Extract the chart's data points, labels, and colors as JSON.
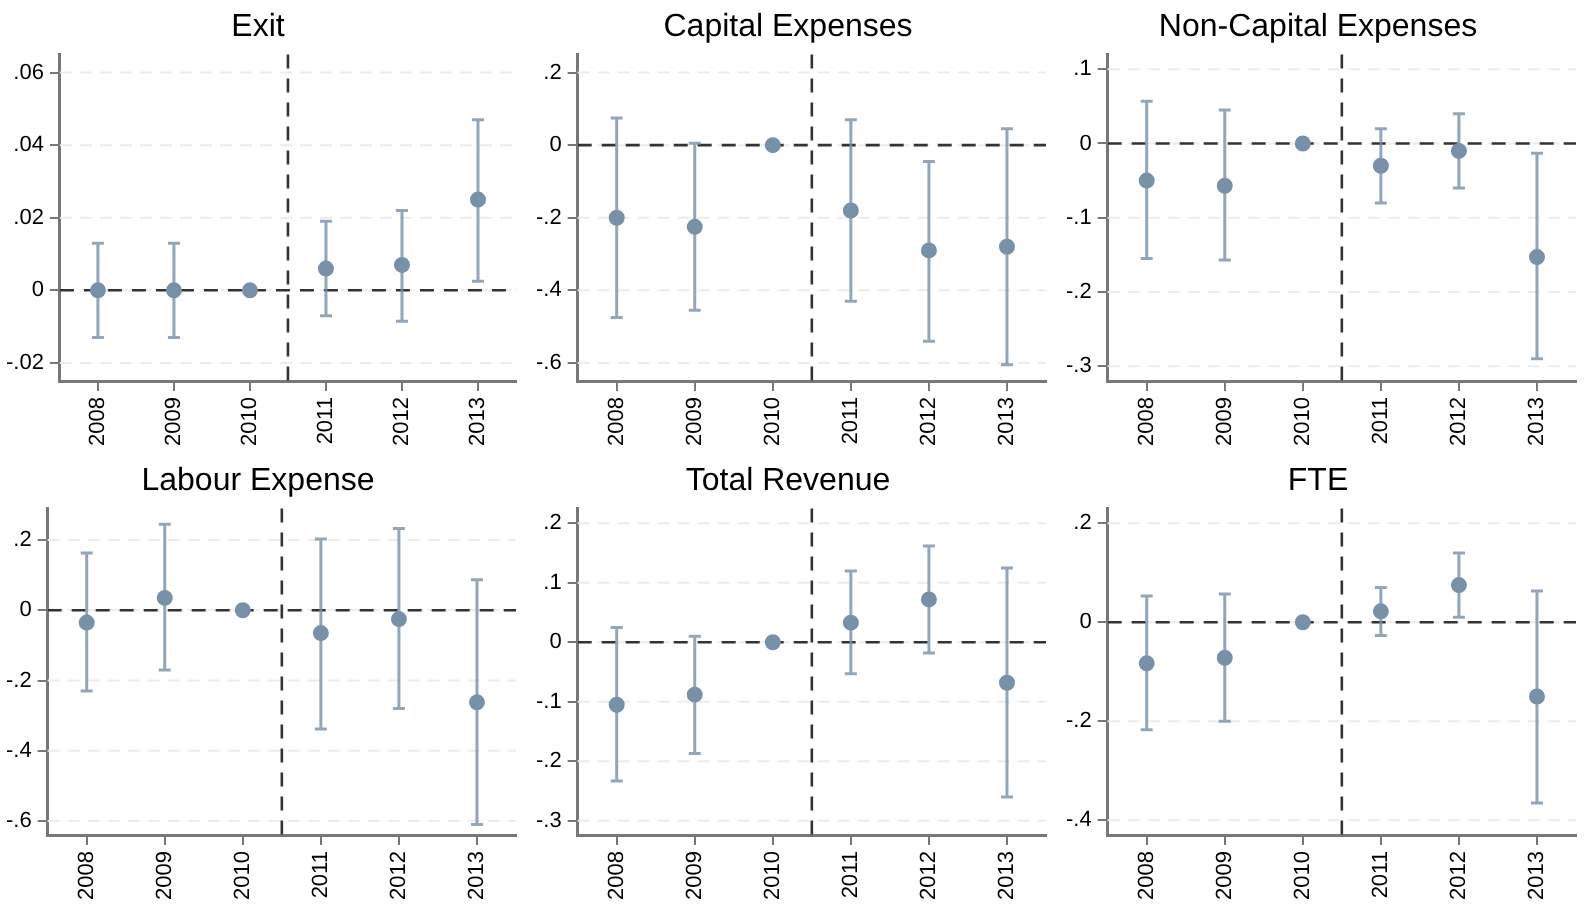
{
  "chart_data": [
    {
      "type": "scatter",
      "title": "Exit",
      "marker": "circle",
      "grid": "y",
      "x": [
        2008,
        2009,
        2010,
        2011,
        2012,
        2013
      ],
      "xlim": [
        2007.5,
        2013.5
      ],
      "xticks": [
        2008,
        2009,
        2010,
        2011,
        2012,
        2013
      ],
      "ylim": [
        -0.025,
        0.065
      ],
      "yticks": [
        {
          "value": -0.02,
          "label": "-.02"
        },
        {
          "value": 0,
          "label": "0"
        },
        {
          "value": 0.02,
          "label": ".02"
        },
        {
          "value": 0.04,
          "label": ".04"
        },
        {
          "value": 0.06,
          "label": ".06"
        }
      ],
      "ref_lines": [
        {
          "axis": "y",
          "value": 0,
          "color": "#333333",
          "line_style": "dashed"
        },
        {
          "axis": "x",
          "value": 2010.5,
          "color": "#333333",
          "line_style": "dashed"
        }
      ],
      "series": [
        {
          "color": "#7890a8",
          "values": [
            0,
            0,
            0,
            0.006,
            0.007,
            0.025
          ],
          "errors": [
            [
              -0.013,
              0.013
            ],
            [
              -0.013,
              0.013
            ],
            null,
            [
              -0.007,
              0.019
            ],
            [
              -0.0085,
              0.022
            ],
            [
              0.0025,
              0.047
            ]
          ]
        }
      ]
    },
    {
      "type": "scatter",
      "title": "Capital Expenses",
      "marker": "circle",
      "grid": "y",
      "x": [
        2008,
        2009,
        2010,
        2011,
        2012,
        2013
      ],
      "xlim": [
        2007.5,
        2013.5
      ],
      "xticks": [
        2008,
        2009,
        2010,
        2011,
        2012,
        2013
      ],
      "ylim": [
        -0.65,
        0.25
      ],
      "yticks": [
        {
          "value": -0.6,
          "label": "-.6"
        },
        {
          "value": -0.4,
          "label": "-.4"
        },
        {
          "value": -0.2,
          "label": "-.2"
        },
        {
          "value": 0,
          "label": "0"
        },
        {
          "value": 0.2,
          "label": ".2"
        }
      ],
      "ref_lines": [
        {
          "axis": "y",
          "value": 0,
          "color": "#333333",
          "line_style": "dashed"
        },
        {
          "axis": "x",
          "value": 2010.5,
          "color": "#333333",
          "line_style": "dashed"
        }
      ],
      "series": [
        {
          "color": "#7890a8",
          "values": [
            -0.2,
            -0.225,
            0,
            -0.18,
            -0.29,
            -0.28
          ],
          "errors": [
            [
              -0.475,
              0.075
            ],
            [
              -0.455,
              0.005
            ],
            null,
            [
              -0.43,
              0.07
            ],
            [
              -0.54,
              -0.045
            ],
            [
              -0.605,
              0.045
            ]
          ]
        }
      ]
    },
    {
      "type": "scatter",
      "title": "Non-Capital Expenses",
      "marker": "circle",
      "grid": "y",
      "x": [
        2008,
        2009,
        2010,
        2011,
        2012,
        2013
      ],
      "xlim": [
        2007.5,
        2013.5
      ],
      "xticks": [
        2008,
        2009,
        2010,
        2011,
        2012,
        2013
      ],
      "ylim": [
        -0.32,
        0.12
      ],
      "yticks": [
        {
          "value": -0.3,
          "label": "-.3"
        },
        {
          "value": -0.2,
          "label": "-.2"
        },
        {
          "value": -0.1,
          "label": "-.1"
        },
        {
          "value": 0,
          "label": "0"
        },
        {
          "value": 0.1,
          "label": ".1"
        }
      ],
      "ref_lines": [
        {
          "axis": "y",
          "value": 0,
          "color": "#333333",
          "line_style": "dashed"
        },
        {
          "axis": "x",
          "value": 2010.5,
          "color": "#333333",
          "line_style": "dashed"
        }
      ],
      "series": [
        {
          "color": "#7890a8",
          "values": [
            -0.05,
            -0.057,
            0,
            -0.03,
            -0.01,
            -0.153
          ],
          "errors": [
            [
              -0.155,
              0.057
            ],
            [
              -0.157,
              0.045
            ],
            null,
            [
              -0.08,
              0.02
            ],
            [
              -0.06,
              0.04
            ],
            [
              -0.29,
              -0.013
            ]
          ]
        }
      ]
    },
    {
      "type": "scatter",
      "title": "Labour Expense",
      "marker": "circle",
      "grid": "y",
      "x": [
        2008,
        2009,
        2010,
        2011,
        2012,
        2013
      ],
      "xlim": [
        2007.5,
        2013.5
      ],
      "xticks": [
        2008,
        2009,
        2010,
        2011,
        2012,
        2013
      ],
      "ylim": [
        -0.64,
        0.29
      ],
      "yticks": [
        {
          "value": -0.6,
          "label": "-.6"
        },
        {
          "value": -0.4,
          "label": "-.4"
        },
        {
          "value": -0.2,
          "label": "-.2"
        },
        {
          "value": 0,
          "label": "0"
        },
        {
          "value": 0.2,
          "label": ".2"
        }
      ],
      "ref_lines": [
        {
          "axis": "y",
          "value": 0,
          "color": "#333333",
          "line_style": "dashed"
        },
        {
          "axis": "x",
          "value": 2010.5,
          "color": "#333333",
          "line_style": "dashed"
        }
      ],
      "series": [
        {
          "color": "#7890a8",
          "values": [
            -0.035,
            0.035,
            0,
            -0.065,
            -0.025,
            -0.262
          ],
          "errors": [
            [
              -0.23,
              0.163
            ],
            [
              -0.17,
              0.245
            ],
            null,
            [
              -0.338,
              0.203
            ],
            [
              -0.28,
              0.233
            ],
            [
              -0.61,
              0.087
            ]
          ]
        }
      ]
    },
    {
      "type": "scatter",
      "title": "Total Revenue",
      "marker": "circle",
      "grid": "y",
      "x": [
        2008,
        2009,
        2010,
        2011,
        2012,
        2013
      ],
      "xlim": [
        2007.5,
        2013.5
      ],
      "xticks": [
        2008,
        2009,
        2010,
        2011,
        2012,
        2013
      ],
      "ylim": [
        -0.324,
        0.225
      ],
      "yticks": [
        {
          "value": -0.3,
          "label": "-.3"
        },
        {
          "value": -0.2,
          "label": "-.2"
        },
        {
          "value": -0.1,
          "label": "-.1"
        },
        {
          "value": 0,
          "label": "0"
        },
        {
          "value": 0.1,
          "label": ".1"
        },
        {
          "value": 0.2,
          "label": ".2"
        }
      ],
      "ref_lines": [
        {
          "axis": "y",
          "value": 0,
          "color": "#333333",
          "line_style": "dashed"
        },
        {
          "axis": "x",
          "value": 2010.5,
          "color": "#333333",
          "line_style": "dashed"
        }
      ],
      "series": [
        {
          "color": "#7890a8",
          "values": [
            -0.105,
            -0.088,
            0,
            0.033,
            0.072,
            -0.068
          ],
          "errors": [
            [
              -0.233,
              0.025
            ],
            [
              -0.187,
              0.01
            ],
            null,
            [
              -0.053,
              0.12
            ],
            [
              -0.018,
              0.162
            ],
            [
              -0.26,
              0.125
            ]
          ]
        }
      ]
    },
    {
      "type": "scatter",
      "title": "FTE",
      "marker": "circle",
      "grid": "y",
      "x": [
        2008,
        2009,
        2010,
        2011,
        2012,
        2013
      ],
      "xlim": [
        2007.5,
        2013.5
      ],
      "xticks": [
        2008,
        2009,
        2010,
        2011,
        2012,
        2013
      ],
      "ylim": [
        -0.43,
        0.23
      ],
      "yticks": [
        {
          "value": -0.4,
          "label": "-.4"
        },
        {
          "value": -0.2,
          "label": "-.2"
        },
        {
          "value": 0,
          "label": "0"
        },
        {
          "value": 0.2,
          "label": ".2"
        }
      ],
      "ref_lines": [
        {
          "axis": "y",
          "value": 0,
          "color": "#333333",
          "line_style": "dashed"
        },
        {
          "axis": "x",
          "value": 2010.5,
          "color": "#333333",
          "line_style": "dashed"
        }
      ],
      "series": [
        {
          "color": "#7890a8",
          "values": [
            -0.083,
            -0.072,
            0,
            0.022,
            0.075,
            -0.15
          ],
          "errors": [
            [
              -0.217,
              0.053
            ],
            [
              -0.2,
              0.057
            ],
            null,
            [
              -0.027,
              0.07
            ],
            [
              0.01,
              0.14
            ],
            [
              -0.365,
              0.063
            ]
          ]
        }
      ]
    }
  ]
}
